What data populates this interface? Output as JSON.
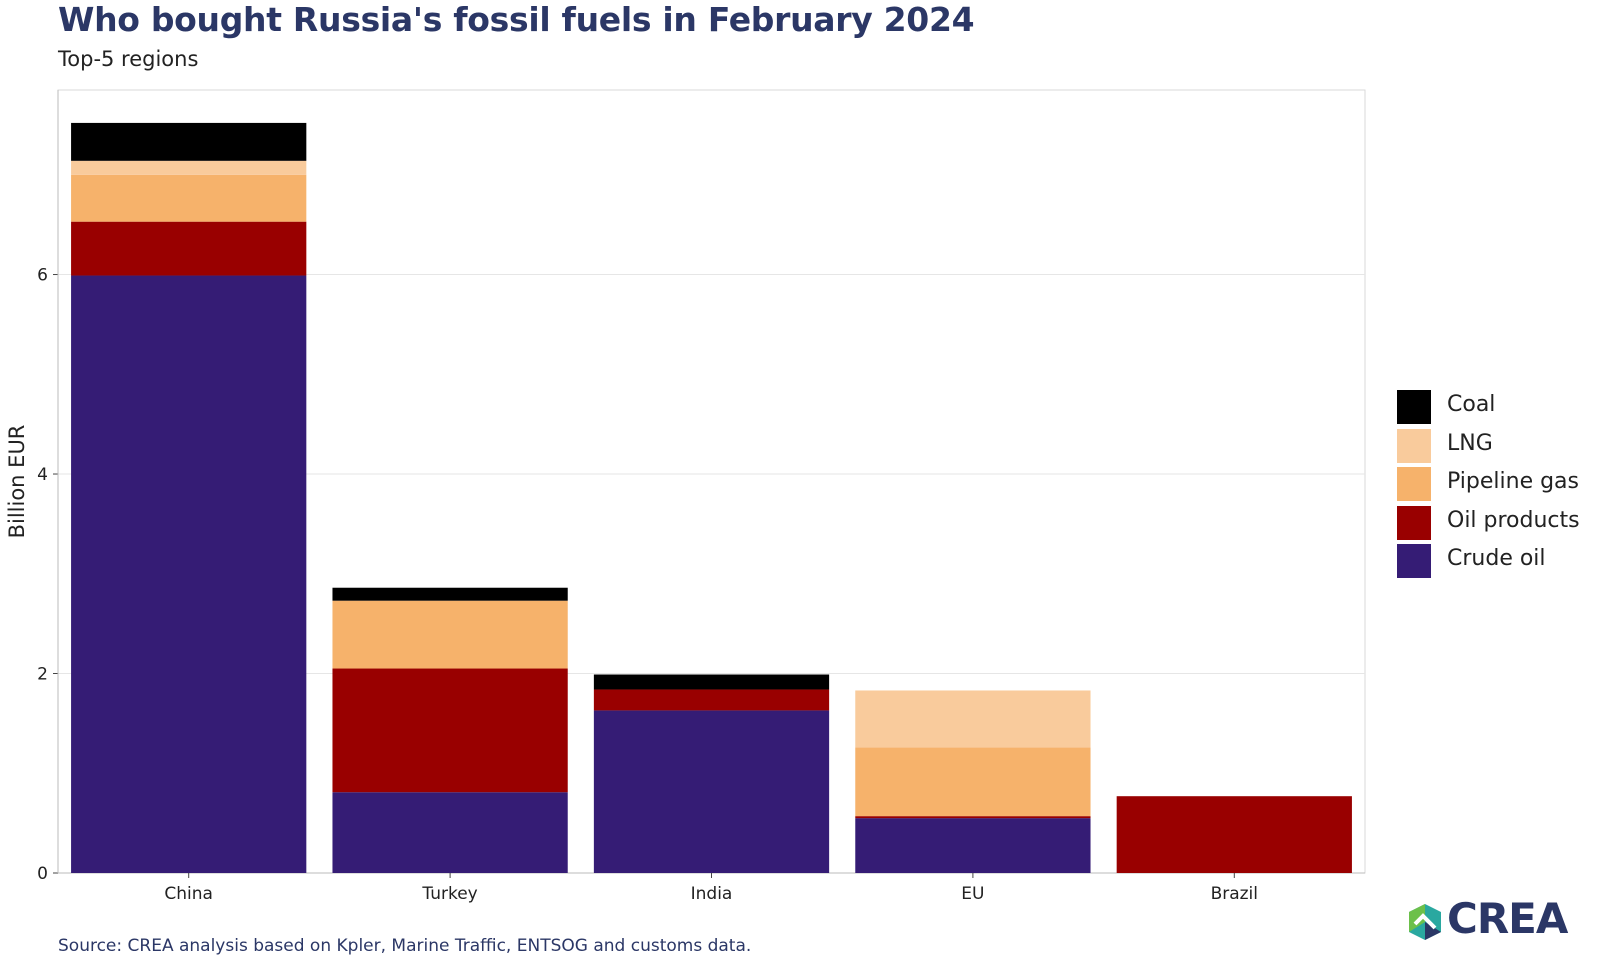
{
  "header": {
    "title": "Who bought Russia's fossil fuels in February 2024",
    "subtitle": "Top-5 regions"
  },
  "footer": {
    "source": "Source: CREA analysis based on Kpler, Marine Traffic, ENTSOG and customs data.",
    "logo_text": "CREA"
  },
  "colors": {
    "Crude oil": "#351c75",
    "Oil products": "#990000",
    "Pipeline gas": "#f6b26b",
    "LNG": "#f9cb9c",
    "Coal": "#000000",
    "title": "#2b3766"
  },
  "chart_data": {
    "type": "bar",
    "stacked": true,
    "categories": [
      "China",
      "Turkey",
      "India",
      "EU",
      "Brazil"
    ],
    "series": [
      {
        "name": "Crude oil",
        "values": [
          5.99,
          0.81,
          1.63,
          0.55,
          0
        ]
      },
      {
        "name": "Oil products",
        "values": [
          0.54,
          1.24,
          0.21,
          0.02,
          0.77
        ]
      },
      {
        "name": "Pipeline gas",
        "values": [
          0.47,
          0.68,
          0,
          0.69,
          0
        ]
      },
      {
        "name": "LNG",
        "values": [
          0.14,
          0,
          0,
          0.57,
          0
        ]
      },
      {
        "name": "Coal",
        "values": [
          0.38,
          0.13,
          0.15,
          0,
          0
        ]
      }
    ],
    "legend_order": [
      "Coal",
      "LNG",
      "Pipeline gas",
      "Oil products",
      "Crude oil"
    ],
    "ylabel": "Billion EUR",
    "xlabel": "",
    "yticks": [
      0,
      2,
      4,
      6
    ],
    "ylim": [
      0,
      7.85
    ],
    "grid": true,
    "legend_position": "right"
  }
}
